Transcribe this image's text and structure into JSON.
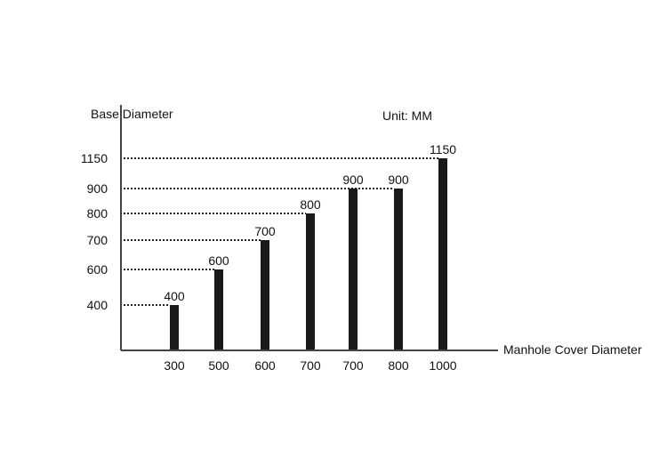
{
  "chart_data": {
    "type": "bar",
    "ylabel": "Base Diameter",
    "xlabel": "Manhole Cover Diameter",
    "unit_label": "Unit: MM",
    "categories": [
      "300",
      "500",
      "600",
      "700",
      "700",
      "800",
      "1000"
    ],
    "values": [
      400,
      600,
      700,
      800,
      900,
      900,
      1150
    ],
    "y_ticks": [
      "400",
      "600",
      "700",
      "800",
      "900",
      "1150"
    ],
    "value_labels": [
      "400",
      "600",
      "700",
      "800",
      "900",
      "900",
      "1150"
    ],
    "ylim": [
      0,
      1200
    ],
    "bar_color": "#1a1a1a",
    "grid": false,
    "reference_lines": "dotted"
  }
}
